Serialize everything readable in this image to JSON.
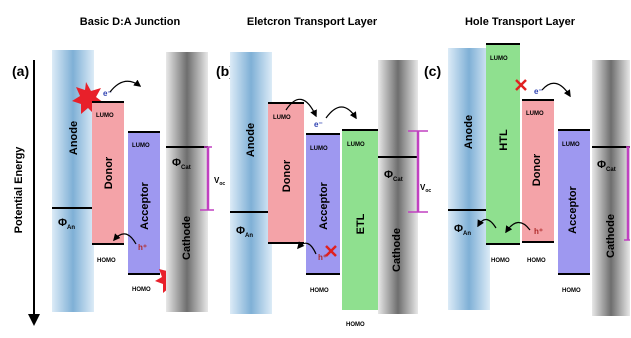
{
  "axis": {
    "label": "Potential Energy"
  },
  "panels": [
    {
      "letter": "(a)",
      "title": "Basic D:A Junction",
      "anode": "Anode",
      "phi_an": "Φ",
      "phi_an_sub": "An",
      "donor": "Donor",
      "acceptor": "Acceptor",
      "lumo": "LUMO",
      "lumo2": "LUMO",
      "homo": "HOMO",
      "homo2": "HOMO",
      "cathode": "Cathode",
      "phi_cat": "Φ",
      "phi_cat_sub": "Cat",
      "voc": "V",
      "voc_sub": "oc",
      "electron": "e⁻",
      "hole": "h⁺"
    },
    {
      "letter": "(b)",
      "title": "Eletcron Transport Layer",
      "anode": "Anode",
      "phi_an": "Φ",
      "phi_an_sub": "An",
      "donor": "Donor",
      "acceptor": "Acceptor",
      "etl": "ETL",
      "lumo": "LUMO",
      "lumo2": "LUMO",
      "lumo3": "LUMO",
      "homo": "HOMO",
      "homo2": "HOMO",
      "cathode": "Cathode",
      "phi_cat": "Φ",
      "phi_cat_sub": "Cat",
      "voc": "V",
      "voc_sub": "oc",
      "electron": "e⁻",
      "hole": "h⁺"
    },
    {
      "letter": "(c)",
      "title": "Hole Transport Layer",
      "anode": "Anode",
      "phi_an": "Φ",
      "phi_an_sub": "An",
      "htl": "HTL",
      "donor": "Donor",
      "acceptor": "Acceptor",
      "lumo": "LUMO",
      "lumo2": "LUMO",
      "lumo3": "LUMO",
      "homo": "HOMO",
      "homo2": "HOMO",
      "homo3": "HOMO",
      "cathode": "Cathode",
      "phi_cat": "Φ",
      "phi_cat_sub": "Cat",
      "electron": "e⁻",
      "hole": "h⁺"
    }
  ],
  "colors": {
    "electrode_blue": "#6ea6cf",
    "cathode_gray": "#7a7a7a",
    "donor": "#f4a3a8",
    "acceptor": "#9e98f0",
    "etl": "#8fe08f",
    "htl": "#8fe08f",
    "voc_bracket": "#c040c0",
    "blocked": "#e02020",
    "photon": "#e8202a"
  }
}
